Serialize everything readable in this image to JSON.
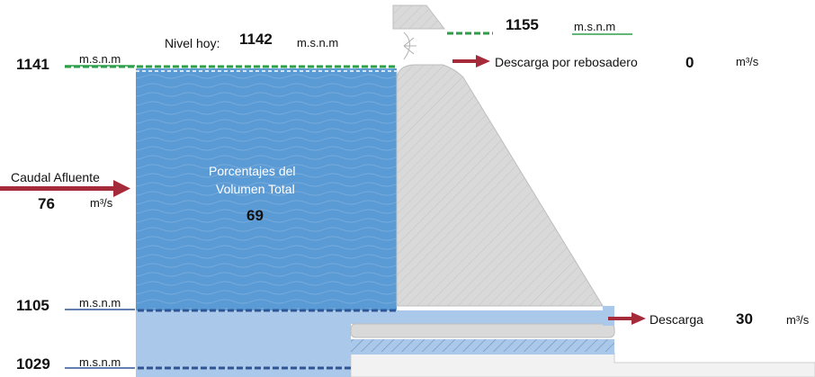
{
  "levels": {
    "today": {
      "label": "Nivel hoy:",
      "value": "1142",
      "unit": "m.s.n.m"
    },
    "max_flood": {
      "value": "1155",
      "unit": "m.s.n.m"
    },
    "normal_max": {
      "value": "1141",
      "unit": "m.s.n.m"
    },
    "min_operating": {
      "value": "1105",
      "unit": "m.s.n.m"
    },
    "dead_level": {
      "value": "1029",
      "unit": "m.s.n.m"
    }
  },
  "spillway": {
    "label": "Descarga por rebosadero",
    "value": "0",
    "unit": "m³/s"
  },
  "discharge": {
    "label": "Descarga",
    "value": "30",
    "unit": "m³/s"
  },
  "inflow": {
    "label": "Caudal Afluente",
    "value": "76",
    "unit": "m³/s"
  },
  "volume": {
    "label_line1": "Porcentajes del",
    "label_line2": "Volumen Total",
    "value": "69"
  },
  "colors": {
    "water_dark": "#5b9bd5",
    "water_light": "#a9c8ea",
    "dam": "#d9d9d9",
    "arrow": "#a52a3a",
    "green_dash": "#2e9e4a",
    "blue_dash": "#2f5597",
    "green_underline": "#2e9e4a",
    "blue_underline": "#2f5597"
  }
}
